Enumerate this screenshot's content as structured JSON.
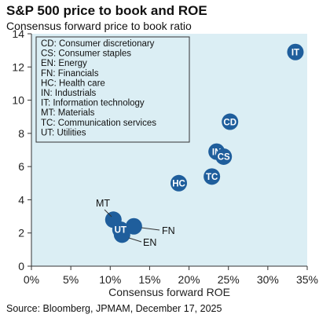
{
  "header": {
    "title": "S&P 500 price to book and ROE",
    "subtitle": "Consensus forward price to book ratio"
  },
  "source": "Source: Bloomberg, JPMAM, December 17, 2025",
  "colors": {
    "plot_bg": "#dbeef4",
    "marker": "#1f5e9c",
    "marker_text": "#ffffff"
  },
  "chart_data": {
    "type": "scatter",
    "title": "S&P 500 price to book and ROE",
    "subtitle": "Consensus forward price to book ratio",
    "xlabel": "Consensus forward ROE",
    "ylabel": "",
    "xlim": [
      0,
      35
    ],
    "ylim": [
      0,
      14
    ],
    "xticks": [
      0,
      5,
      10,
      15,
      20,
      25,
      30,
      35
    ],
    "xtick_labels": [
      "0%",
      "5%",
      "10%",
      "15%",
      "20%",
      "25%",
      "30%",
      "35%"
    ],
    "yticks": [
      0,
      2,
      4,
      6,
      8,
      10,
      12,
      14
    ],
    "ytick_labels": [
      "0",
      "2",
      "4",
      "6",
      "8",
      "10",
      "12",
      "14"
    ],
    "grid": false,
    "legend_placement": "top-left",
    "legend": [
      "CD: Consumer discretionary",
      "CS: Consumer staples",
      "EN: Energy",
      "FN: Financials",
      "HC: Health care",
      "IN: Industrials",
      "IT: Information technology",
      "MT: Materials",
      "TC: Communication services",
      "UT: Utilities"
    ],
    "points": [
      {
        "label": "IT",
        "x": 33.5,
        "y": 12.9,
        "label_on_marker": true
      },
      {
        "label": "CD",
        "x": 25.2,
        "y": 8.7,
        "label_on_marker": true
      },
      {
        "label": "IN",
        "x": 23.5,
        "y": 6.9,
        "label_on_marker": true
      },
      {
        "label": "CS",
        "x": 24.4,
        "y": 6.6,
        "label_on_marker": true
      },
      {
        "label": "TC",
        "x": 22.9,
        "y": 5.4,
        "label_on_marker": true
      },
      {
        "label": "HC",
        "x": 18.7,
        "y": 5.0,
        "label_on_marker": true
      },
      {
        "label": "MT",
        "x": 10.4,
        "y": 2.8,
        "label_on_marker": false
      },
      {
        "label": "UT",
        "x": 11.3,
        "y": 2.2,
        "label_on_marker": true
      },
      {
        "label": "FN",
        "x": 13.0,
        "y": 2.4,
        "label_on_marker": false
      },
      {
        "label": "EN",
        "x": 11.5,
        "y": 1.9,
        "label_on_marker": false
      }
    ]
  }
}
